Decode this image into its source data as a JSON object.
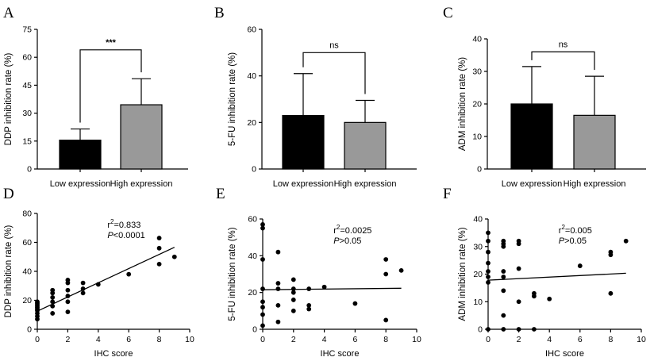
{
  "colors": {
    "black": "#000000",
    "gray": "#999999",
    "axis": "#000000"
  },
  "chart_data": [
    {
      "panel": "A",
      "type": "bar",
      "categories": [
        "Low expression",
        "High expression"
      ],
      "values": [
        15.5,
        34.5
      ],
      "errors": [
        6,
        14
      ],
      "bar_colors": [
        "#000000",
        "#999999"
      ],
      "ylabel": "DDP inhibition rate (%)",
      "ylim": [
        0,
        75
      ],
      "yticks": [
        0,
        15,
        30,
        45,
        60,
        75
      ],
      "significance": "***",
      "sig_y": 64
    },
    {
      "panel": "B",
      "type": "bar",
      "categories": [
        "Low expression",
        "High expression"
      ],
      "values": [
        23,
        20
      ],
      "errors": [
        18,
        9.5
      ],
      "bar_colors": [
        "#000000",
        "#999999"
      ],
      "ylabel": "5-FU inhibition rate (%)",
      "ylim": [
        0,
        60
      ],
      "yticks": [
        0,
        20,
        40,
        60
      ],
      "significance": "ns",
      "sig_y": 50
    },
    {
      "panel": "C",
      "type": "bar",
      "categories": [
        "Low expression",
        "High expression"
      ],
      "values": [
        20,
        16.5
      ],
      "errors": [
        11.5,
        12
      ],
      "bar_colors": [
        "#000000",
        "#999999"
      ],
      "ylabel": "ADM inhibition rate (%)",
      "ylim": [
        0,
        40
      ],
      "yticks": [
        0,
        10,
        20,
        30,
        40
      ],
      "significance": "ns",
      "sig_y": 36
    },
    {
      "panel": "D",
      "type": "scatter",
      "xlabel": "IHC score",
      "ylabel": "DDP inhibition rate (%)",
      "xlim": [
        0,
        10
      ],
      "ylim": [
        0,
        80
      ],
      "xticks": [
        0,
        2,
        4,
        6,
        8,
        10
      ],
      "yticks": [
        0,
        20,
        40,
        60,
        80
      ],
      "r2_text": "=0.833",
      "p_text": "<0.0001",
      "fit": {
        "intercept": 12.5,
        "slope": 4.9,
        "x_range": [
          0,
          9
        ]
      },
      "points": [
        [
          0,
          7
        ],
        [
          0,
          9
        ],
        [
          0,
          11
        ],
        [
          0,
          13
        ],
        [
          0,
          14
        ],
        [
          0,
          15
        ],
        [
          0,
          16
        ],
        [
          0,
          17
        ],
        [
          0,
          18
        ],
        [
          0,
          19
        ],
        [
          1,
          11
        ],
        [
          1,
          16
        ],
        [
          1,
          19
        ],
        [
          1,
          22
        ],
        [
          1,
          25
        ],
        [
          1,
          27
        ],
        [
          2,
          12
        ],
        [
          2,
          19
        ],
        [
          2,
          23
        ],
        [
          2,
          27
        ],
        [
          2,
          32
        ],
        [
          2,
          34
        ],
        [
          3,
          25
        ],
        [
          3,
          28
        ],
        [
          3,
          32
        ],
        [
          4,
          31
        ],
        [
          6,
          38
        ],
        [
          8,
          45
        ],
        [
          8,
          56
        ],
        [
          8,
          63
        ],
        [
          9,
          50
        ]
      ]
    },
    {
      "panel": "E",
      "type": "scatter",
      "xlabel": "IHC score",
      "ylabel": "5-FU inhibition rate (%)",
      "xlim": [
        0,
        10
      ],
      "ylim": [
        0,
        60
      ],
      "xticks": [
        0,
        2,
        4,
        6,
        8,
        10
      ],
      "yticks": [
        0,
        20,
        40,
        60
      ],
      "r2_text": "=0.0025",
      "p_text": ">0.05",
      "fit": {
        "intercept": 21.5,
        "slope": 0.09,
        "x_range": [
          0,
          9
        ]
      },
      "points": [
        [
          0,
          2
        ],
        [
          0,
          8
        ],
        [
          0,
          12
        ],
        [
          0,
          15
        ],
        [
          0,
          22
        ],
        [
          0,
          38
        ],
        [
          0,
          55
        ],
        [
          0,
          57
        ],
        [
          1,
          4
        ],
        [
          1,
          13
        ],
        [
          1,
          22
        ],
        [
          1,
          25
        ],
        [
          1,
          42
        ],
        [
          2,
          10
        ],
        [
          2,
          16
        ],
        [
          2,
          20
        ],
        [
          2,
          22
        ],
        [
          2,
          27
        ],
        [
          3,
          11
        ],
        [
          3,
          13
        ],
        [
          3,
          22
        ],
        [
          4,
          23
        ],
        [
          6,
          14
        ],
        [
          8,
          5
        ],
        [
          8,
          30
        ],
        [
          8,
          38
        ],
        [
          9,
          32
        ]
      ]
    },
    {
      "panel": "F",
      "type": "scatter",
      "xlabel": "IHC score",
      "ylabel": "ADM inhibition rate (%)",
      "xlim": [
        0,
        10
      ],
      "ylim": [
        0,
        40
      ],
      "xticks": [
        0,
        2,
        4,
        6,
        8,
        10
      ],
      "yticks": [
        0,
        10,
        20,
        30,
        40
      ],
      "r2_text": "=0.005",
      "p_text": ">0.05",
      "fit": {
        "intercept": 17.8,
        "slope": 0.28,
        "x_range": [
          0,
          9
        ]
      },
      "points": [
        [
          0,
          0
        ],
        [
          0,
          17
        ],
        [
          0,
          19
        ],
        [
          0,
          21
        ],
        [
          0,
          24
        ],
        [
          0,
          28
        ],
        [
          0,
          32
        ],
        [
          0,
          35
        ],
        [
          1,
          0
        ],
        [
          1,
          5
        ],
        [
          1,
          14
        ],
        [
          1,
          19
        ],
        [
          1,
          21
        ],
        [
          1,
          30
        ],
        [
          1,
          31
        ],
        [
          1,
          32
        ],
        [
          2,
          0
        ],
        [
          2,
          10
        ],
        [
          2,
          22
        ],
        [
          2,
          31
        ],
        [
          2,
          32
        ],
        [
          3,
          0
        ],
        [
          3,
          12
        ],
        [
          3,
          13
        ],
        [
          4,
          11
        ],
        [
          6,
          23
        ],
        [
          8,
          13
        ],
        [
          8,
          27
        ],
        [
          8,
          28
        ],
        [
          9,
          32
        ]
      ]
    }
  ]
}
